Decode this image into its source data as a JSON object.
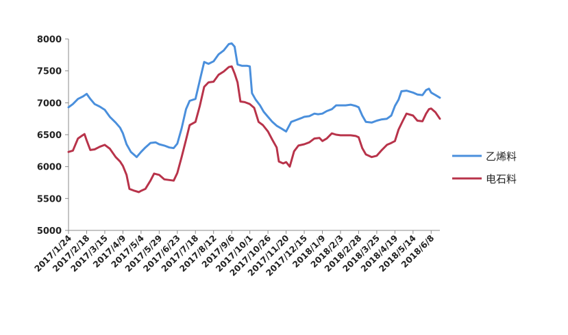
{
  "chart_data": {
    "type": "line",
    "title": "",
    "xlabel": "",
    "ylabel": "",
    "ylim": [
      5000,
      8000
    ],
    "yticks": [
      5000,
      5500,
      6000,
      6500,
      7000,
      7500,
      8000
    ],
    "x_tick_labels": [
      "2017/1/24",
      "2017/2/18",
      "2017/3/15",
      "2017/4/9",
      "2017/5/4",
      "2017/5/29",
      "2017/6/23",
      "2017/7/18",
      "2017/8/12",
      "2017/9/6",
      "2017/10/1",
      "2017/10/26",
      "2017/11/20",
      "2017/12/15",
      "2018/1/9",
      "2018/2/3",
      "2018/2/28",
      "2018/3/25",
      "2018/4/19",
      "2018/5/14",
      "2018/6/8"
    ],
    "x_start": "2017/1/24",
    "x_end": "2018/6/20",
    "grid": false,
    "legend_position": "right",
    "series": [
      {
        "name": "乙烯料",
        "color": "#4a8fdc",
        "points": [
          [
            "2017/1/24",
            6930
          ],
          [
            "2017/1/30",
            6980
          ],
          [
            "2017/2/6",
            7060
          ],
          [
            "2017/2/13",
            7100
          ],
          [
            "2017/2/18",
            7140
          ],
          [
            "2017/2/23",
            7060
          ],
          [
            "2017/3/1",
            6980
          ],
          [
            "2017/3/8",
            6940
          ],
          [
            "2017/3/15",
            6890
          ],
          [
            "2017/3/22",
            6780
          ],
          [
            "2017/3/30",
            6690
          ],
          [
            "2017/4/5",
            6610
          ],
          [
            "2017/4/9",
            6520
          ],
          [
            "2017/4/14",
            6350
          ],
          [
            "2017/4/20",
            6230
          ],
          [
            "2017/4/25",
            6180
          ],
          [
            "2017/4/28",
            6150
          ],
          [
            "2017/5/4",
            6230
          ],
          [
            "2017/5/10",
            6300
          ],
          [
            "2017/5/17",
            6370
          ],
          [
            "2017/5/24",
            6380
          ],
          [
            "2017/5/29",
            6350
          ],
          [
            "2017/6/5",
            6330
          ],
          [
            "2017/6/12",
            6300
          ],
          [
            "2017/6/18",
            6290
          ],
          [
            "2017/6/23",
            6360
          ],
          [
            "2017/6/29",
            6600
          ],
          [
            "2017/7/5",
            6900
          ],
          [
            "2017/7/10",
            7030
          ],
          [
            "2017/7/18",
            7060
          ],
          [
            "2017/7/24",
            7350
          ],
          [
            "2017/7/30",
            7640
          ],
          [
            "2017/8/5",
            7610
          ],
          [
            "2017/8/12",
            7650
          ],
          [
            "2017/8/19",
            7760
          ],
          [
            "2017/8/26",
            7820
          ],
          [
            "2017/9/2",
            7920
          ],
          [
            "2017/9/6",
            7930
          ],
          [
            "2017/9/10",
            7880
          ],
          [
            "2017/9/14",
            7600
          ],
          [
            "2017/9/20",
            7580
          ],
          [
            "2017/9/27",
            7580
          ],
          [
            "2017/10/1",
            7570
          ],
          [
            "2017/10/4",
            7150
          ],
          [
            "2017/10/9",
            7050
          ],
          [
            "2017/10/15",
            6960
          ],
          [
            "2017/10/20",
            6860
          ],
          [
            "2017/10/26",
            6780
          ],
          [
            "2017/11/1",
            6700
          ],
          [
            "2017/11/7",
            6640
          ],
          [
            "2017/11/13",
            6600
          ],
          [
            "2017/11/20",
            6550
          ],
          [
            "2017/11/27",
            6700
          ],
          [
            "2017/12/4",
            6730
          ],
          [
            "2017/12/11",
            6760
          ],
          [
            "2017/12/15",
            6780
          ],
          [
            "2017/12/22",
            6790
          ],
          [
            "2017/12/29",
            6830
          ],
          [
            "2018/1/3",
            6820
          ],
          [
            "2018/1/9",
            6830
          ],
          [
            "2018/1/15",
            6870
          ],
          [
            "2018/1/22",
            6900
          ],
          [
            "2018/1/28",
            6960
          ],
          [
            "2018/2/3",
            6960
          ],
          [
            "2018/2/10",
            6960
          ],
          [
            "2018/2/17",
            6970
          ],
          [
            "2018/2/24",
            6950
          ],
          [
            "2018/2/28",
            6930
          ],
          [
            "2018/3/5",
            6800
          ],
          [
            "2018/3/10",
            6700
          ],
          [
            "2018/3/18",
            6690
          ],
          [
            "2018/3/25",
            6720
          ],
          [
            "2018/4/1",
            6740
          ],
          [
            "2018/4/8",
            6750
          ],
          [
            "2018/4/14",
            6800
          ],
          [
            "2018/4/19",
            6950
          ],
          [
            "2018/4/24",
            7050
          ],
          [
            "2018/4/28",
            7180
          ],
          [
            "2018/5/5",
            7190
          ],
          [
            "2018/5/14",
            7160
          ],
          [
            "2018/5/20",
            7130
          ],
          [
            "2018/5/27",
            7120
          ],
          [
            "2018/6/1",
            7200
          ],
          [
            "2018/6/5",
            7220
          ],
          [
            "2018/6/8",
            7160
          ],
          [
            "2018/6/14",
            7120
          ],
          [
            "2018/6/20",
            7080
          ]
        ]
      },
      {
        "name": "电石料",
        "color": "#b8334a",
        "points": [
          [
            "2017/1/24",
            6230
          ],
          [
            "2017/1/30",
            6250
          ],
          [
            "2017/2/6",
            6440
          ],
          [
            "2017/2/11",
            6480
          ],
          [
            "2017/2/15",
            6510
          ],
          [
            "2017/2/18",
            6410
          ],
          [
            "2017/2/23",
            6260
          ],
          [
            "2017/3/1",
            6270
          ],
          [
            "2017/3/8",
            6310
          ],
          [
            "2017/3/15",
            6340
          ],
          [
            "2017/3/22",
            6280
          ],
          [
            "2017/3/30",
            6150
          ],
          [
            "2017/4/5",
            6080
          ],
          [
            "2017/4/9",
            6010
          ],
          [
            "2017/4/14",
            5870
          ],
          [
            "2017/4/18",
            5650
          ],
          [
            "2017/4/25",
            5620
          ],
          [
            "2017/5/1",
            5600
          ],
          [
            "2017/5/4",
            5620
          ],
          [
            "2017/5/10",
            5650
          ],
          [
            "2017/5/17",
            5780
          ],
          [
            "2017/5/22",
            5890
          ],
          [
            "2017/5/29",
            5870
          ],
          [
            "2017/6/5",
            5800
          ],
          [
            "2017/6/12",
            5790
          ],
          [
            "2017/6/18",
            5780
          ],
          [
            "2017/6/23",
            5900
          ],
          [
            "2017/6/29",
            6150
          ],
          [
            "2017/7/5",
            6420
          ],
          [
            "2017/7/10",
            6650
          ],
          [
            "2017/7/18",
            6700
          ],
          [
            "2017/7/24",
            6950
          ],
          [
            "2017/7/30",
            7250
          ],
          [
            "2017/8/5",
            7320
          ],
          [
            "2017/8/12",
            7330
          ],
          [
            "2017/8/19",
            7440
          ],
          [
            "2017/8/26",
            7490
          ],
          [
            "2017/9/2",
            7560
          ],
          [
            "2017/9/6",
            7570
          ],
          [
            "2017/9/10",
            7460
          ],
          [
            "2017/9/14",
            7320
          ],
          [
            "2017/9/18",
            7020
          ],
          [
            "2017/9/24",
            7010
          ],
          [
            "2017/10/1",
            6980
          ],
          [
            "2017/10/7",
            6920
          ],
          [
            "2017/10/13",
            6700
          ],
          [
            "2017/10/19",
            6650
          ],
          [
            "2017/10/26",
            6550
          ],
          [
            "2017/11/1",
            6420
          ],
          [
            "2017/11/7",
            6300
          ],
          [
            "2017/11/10",
            6080
          ],
          [
            "2017/11/16",
            6050
          ],
          [
            "2017/11/20",
            6070
          ],
          [
            "2017/11/25",
            6000
          ],
          [
            "2017/12/1",
            6240
          ],
          [
            "2017/12/7",
            6330
          ],
          [
            "2017/12/15",
            6350
          ],
          [
            "2017/12/22",
            6380
          ],
          [
            "2017/12/29",
            6440
          ],
          [
            "2018/1/5",
            6450
          ],
          [
            "2018/1/9",
            6400
          ],
          [
            "2018/1/15",
            6440
          ],
          [
            "2018/1/22",
            6520
          ],
          [
            "2018/1/28",
            6500
          ],
          [
            "2018/2/3",
            6490
          ],
          [
            "2018/2/10",
            6490
          ],
          [
            "2018/2/17",
            6490
          ],
          [
            "2018/2/24",
            6480
          ],
          [
            "2018/2/28",
            6460
          ],
          [
            "2018/3/5",
            6290
          ],
          [
            "2018/3/10",
            6190
          ],
          [
            "2018/3/18",
            6150
          ],
          [
            "2018/3/25",
            6170
          ],
          [
            "2018/4/1",
            6260
          ],
          [
            "2018/4/8",
            6340
          ],
          [
            "2018/4/14",
            6370
          ],
          [
            "2018/4/19",
            6400
          ],
          [
            "2018/4/24",
            6580
          ],
          [
            "2018/4/30",
            6720
          ],
          [
            "2018/5/5",
            6830
          ],
          [
            "2018/5/14",
            6800
          ],
          [
            "2018/5/20",
            6720
          ],
          [
            "2018/5/27",
            6710
          ],
          [
            "2018/6/1",
            6830
          ],
          [
            "2018/6/5",
            6900
          ],
          [
            "2018/6/8",
            6910
          ],
          [
            "2018/6/14",
            6850
          ],
          [
            "2018/6/20",
            6750
          ]
        ]
      }
    ]
  }
}
